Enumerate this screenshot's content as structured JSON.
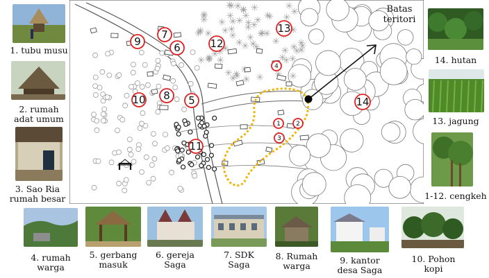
{
  "map": {
    "boundary_label_line1": "Batas",
    "boundary_label_line2": "teritori",
    "markers": [
      "1",
      "2",
      "3",
      "4",
      "5",
      "6",
      "7",
      "8",
      "9",
      "10",
      "11",
      "12",
      "13",
      "14"
    ]
  },
  "photos_left": [
    {
      "caption": "1. tubu musu"
    },
    {
      "caption_line1": "2. rumah",
      "caption_line2": "adat umum"
    },
    {
      "caption_line1": "3. Sao Ria",
      "caption_line2": "rumah besar"
    }
  ],
  "photos_right": [
    {
      "caption": "14. hutan"
    },
    {
      "caption": "13. jagung"
    },
    {
      "caption": "1-12. cengkeh"
    }
  ],
  "photos_bottom": [
    {
      "caption_line1": "4. rumah",
      "caption_line2": "warga"
    },
    {
      "caption_line1": "5. gerbang",
      "caption_line2": "masuk"
    },
    {
      "caption_line1": "6. gereja",
      "caption_line2": "Saga"
    },
    {
      "caption_line1": "7. SDK",
      "caption_line2": "Saga"
    },
    {
      "caption_line1": "8. Rumah",
      "caption_line2": "warga"
    },
    {
      "caption_line1": "9. kantor",
      "caption_line2": "desa Saga"
    },
    {
      "caption_line1": "10. Pohon",
      "caption_line2": "kopi"
    }
  ],
  "colors": {
    "marker": "#e02020",
    "boundary": "#f2b400",
    "tree_outline": "#777777"
  }
}
